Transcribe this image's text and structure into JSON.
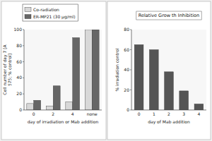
{
  "chart_data": [
    {
      "type": "bar",
      "categories": [
        "0",
        "2",
        "4",
        "none"
      ],
      "series": [
        {
          "name": "Co-radiation",
          "color": "#d8d8d8",
          "values": [
            8,
            5,
            10,
            100
          ]
        },
        {
          "name": "ER-MP21 (30 μg/ml)",
          "color": "#666666",
          "values": [
            12,
            30,
            90,
            100
          ]
        }
      ],
      "xlabel": "day of irradiation or Mab addition",
      "ylabel": "Cell number of day 7 [A\n575; % control]",
      "ylim": [
        0,
        100
      ],
      "yticks": [
        0,
        20,
        40,
        60,
        80,
        100
      ],
      "legend": "top"
    },
    {
      "type": "bar",
      "title": "Relative Grow th Inhibition",
      "categories": [
        "0",
        "1",
        "2",
        "3",
        "4"
      ],
      "values": [
        65,
        60,
        38,
        19,
        6
      ],
      "color": "#555555",
      "xlabel": "day of Mab addition",
      "ylabel": "% irradiation control",
      "ylim": [
        0,
        80
      ],
      "yticks": [
        0,
        20,
        40,
        60,
        80
      ]
    }
  ]
}
